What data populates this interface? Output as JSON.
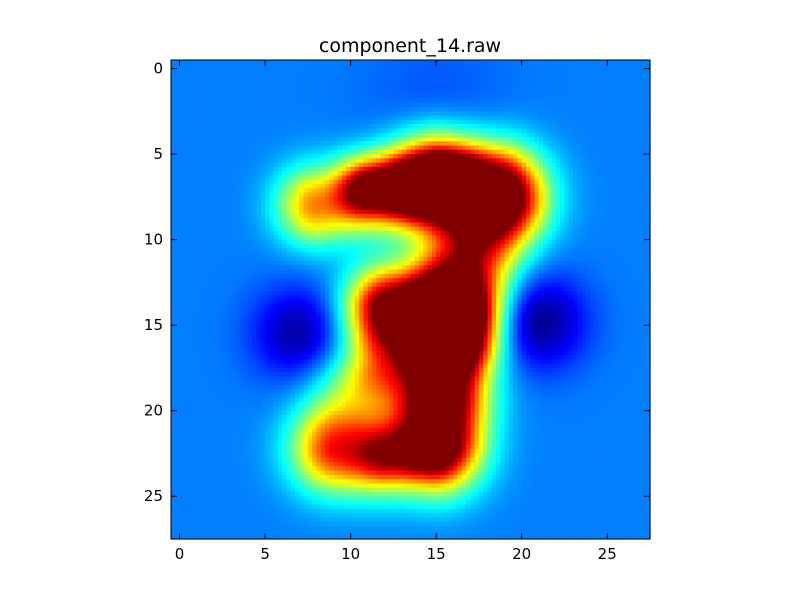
{
  "chart_data": {
    "type": "heatmap",
    "title": "component_14.raw",
    "xlabel": "",
    "ylabel": "",
    "grid_size": [
      28,
      28
    ],
    "colormap": "jet",
    "x_ticks": [
      0,
      5,
      10,
      15,
      20,
      25
    ],
    "y_ticks": [
      0,
      5,
      10,
      15,
      20,
      25
    ],
    "xlim": [
      -0.5,
      27.5
    ],
    "ylim": [
      27.5,
      -0.5
    ],
    "value_range": [
      0,
      1
    ],
    "background_level": 0.25,
    "strokes": [
      {
        "segment": "7-top-arm",
        "from": [
          8,
          8
        ],
        "to": [
          15,
          6.6
        ],
        "intensity": 0.5,
        "width": 1.6
      },
      {
        "segment": "7-top-hook",
        "from": [
          15,
          6.6
        ],
        "to": [
          18.5,
          7.2
        ],
        "intensity": 0.58,
        "width": 1.9
      },
      {
        "segment": "7-upper-core",
        "from": [
          11,
          7
        ],
        "to": [
          16,
          7
        ],
        "intensity": 0.45,
        "width": 1.1
      },
      {
        "segment": "7-diagonal",
        "from": [
          18.2,
          8
        ],
        "to": [
          15.6,
          14.5
        ],
        "intensity": 0.62,
        "width": 1.9
      },
      {
        "segment": "7-stem",
        "from": [
          15.6,
          14.5
        ],
        "to": [
          15.3,
          19
        ],
        "intensity": 0.5,
        "width": 1.8
      },
      {
        "segment": "3-middle",
        "from": [
          12.2,
          14
        ],
        "to": [
          15.6,
          14.6
        ],
        "intensity": 0.45,
        "width": 1.8
      },
      {
        "segment": "3-left-vertical",
        "from": [
          11.7,
          14
        ],
        "to": [
          11.7,
          17.5
        ],
        "intensity": 0.28,
        "width": 1.4
      },
      {
        "segment": "3-right-lower",
        "from": [
          15.3,
          17
        ],
        "to": [
          15.2,
          21.5
        ],
        "intensity": 0.42,
        "width": 1.8
      },
      {
        "segment": "3-bottom",
        "from": [
          9,
          22.2
        ],
        "to": [
          15,
          22.6
        ],
        "intensity": 0.42,
        "width": 1.8
      },
      {
        "segment": "3-bottom-hot",
        "from": [
          12,
          22.8
        ],
        "to": [
          14.5,
          22.4
        ],
        "intensity": 0.22,
        "width": 1.1
      },
      {
        "segment": "3-left-lower",
        "from": [
          10,
          19
        ],
        "to": [
          9.6,
          22.2
        ],
        "intensity": 0.22,
        "width": 1.8
      }
    ],
    "negative_blobs": [
      {
        "center": [
          7,
          15.5
        ],
        "intensity": -0.22,
        "radius": 1.9
      },
      {
        "center": [
          21,
          14.8
        ],
        "intensity": -0.25,
        "radius": 1.9
      },
      {
        "center": [
          15,
          2.5
        ],
        "intensity": -0.05,
        "radius": 3.0
      }
    ]
  }
}
